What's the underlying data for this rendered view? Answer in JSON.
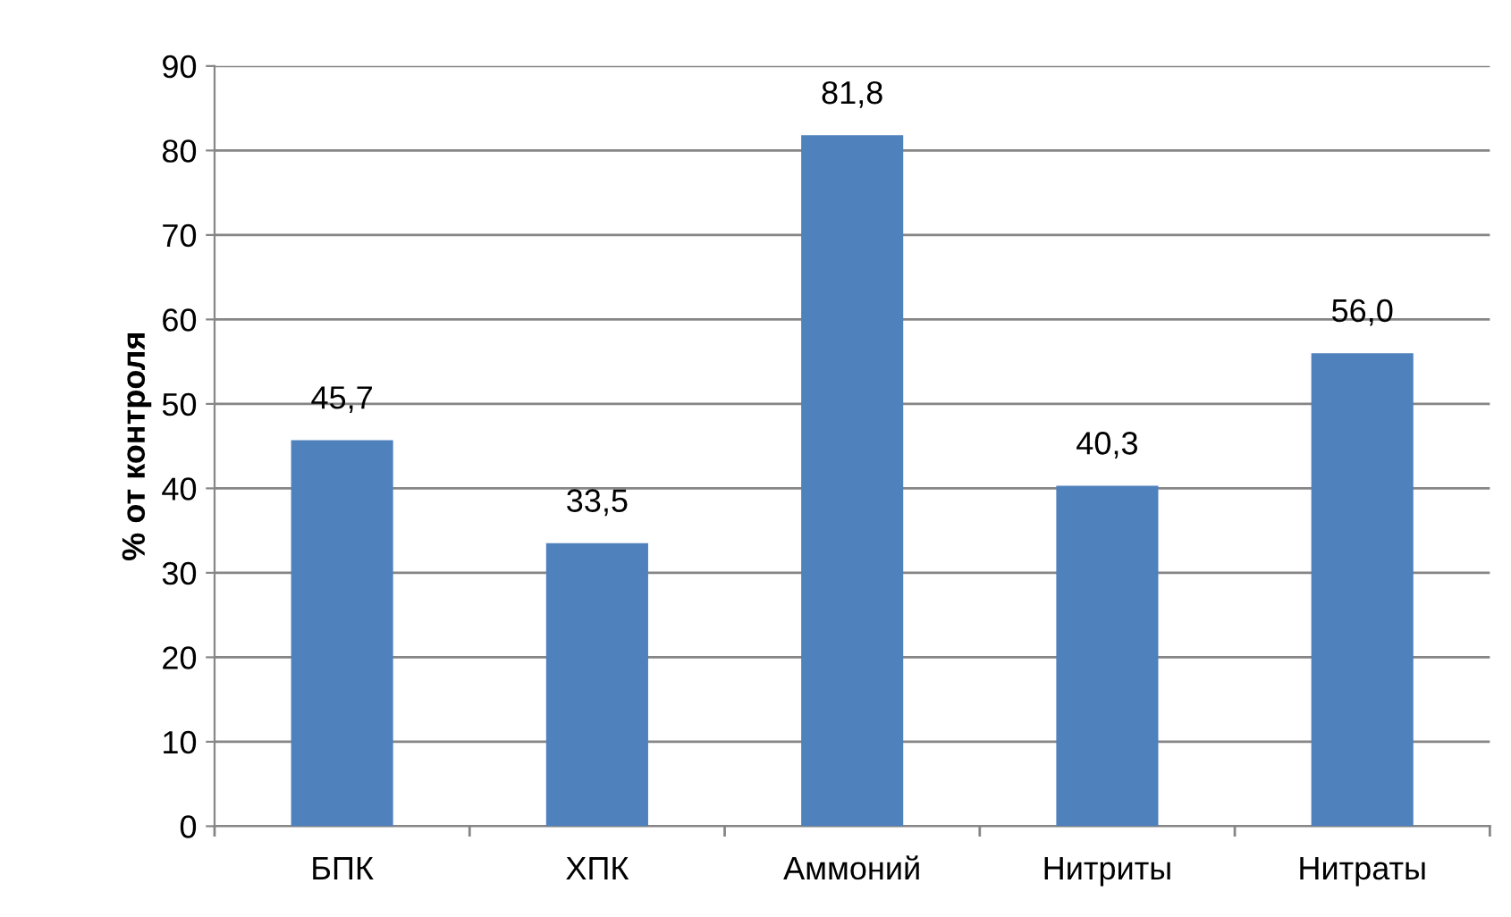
{
  "chart_data": {
    "type": "bar",
    "ylabel": "% от контроля",
    "categories": [
      "БПК",
      "ХПК",
      "Аммоний",
      "Нитриты",
      "Нитраты"
    ],
    "values": [
      45.7,
      33.5,
      81.8,
      40.3,
      56.0
    ],
    "value_labels": [
      "45,7",
      "33,5",
      "81,8",
      "40,3",
      "56,0"
    ],
    "color": "#4f81bd",
    "ylim": [
      0,
      90
    ],
    "yticks": [
      0,
      10,
      20,
      30,
      40,
      50,
      60,
      70,
      80,
      90
    ],
    "grid": "y"
  }
}
